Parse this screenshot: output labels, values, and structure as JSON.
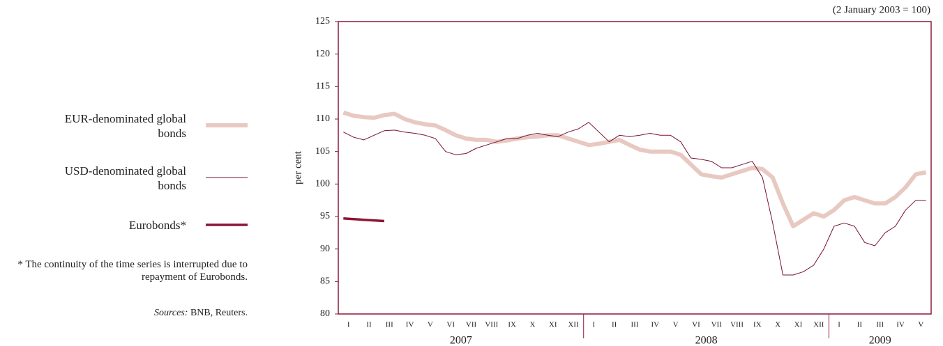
{
  "chart_data": {
    "type": "line",
    "note": "(2 January 2003 = 100)",
    "ylabel": "per cent",
    "categories": [
      "I",
      null,
      "II",
      null,
      "III",
      null,
      "IV",
      null,
      "V",
      null,
      "VI",
      null,
      "VII",
      null,
      "VIII",
      null,
      "IX",
      null,
      "X",
      null,
      "XI",
      null,
      "XII",
      null,
      "I",
      null,
      "II",
      null,
      "III",
      null,
      "IV",
      null,
      "V",
      null,
      "VI",
      null,
      "VII",
      null,
      "VIII",
      null,
      "IX",
      null,
      "X",
      null,
      "XI",
      null,
      "XII",
      null,
      "I",
      null,
      "II",
      null,
      "III",
      null,
      "IV",
      null,
      "V",
      null
    ],
    "years": [
      "2007",
      "2008",
      "2009"
    ],
    "ylim": [
      80,
      125
    ],
    "yticks": [
      80,
      85,
      90,
      95,
      100,
      105,
      110,
      115,
      120,
      125
    ],
    "series": [
      {
        "name": "EUR-denominated global bonds",
        "color": "#e8c9c1",
        "width": 6,
        "values": [
          111,
          110.5,
          110.3,
          110.2,
          110.6,
          110.8,
          110,
          109.5,
          109.2,
          109,
          108.3,
          107.5,
          107,
          106.8,
          106.8,
          106.5,
          106.7,
          107,
          107.2,
          107.3,
          107.5,
          107.5,
          107,
          106.5,
          106,
          106.2,
          106.5,
          106.8,
          106,
          105.3,
          105,
          105,
          105,
          104.5,
          103,
          101.5,
          101.2,
          101,
          101.5,
          102,
          102.5,
          102.3,
          101,
          97,
          93.5,
          94.5,
          95.5,
          95,
          96,
          97.5,
          98,
          97.5,
          97,
          97,
          98,
          99.5,
          101.5,
          101.8
        ]
      },
      {
        "name": "USD-denominated global bonds",
        "color": "#7a1030",
        "width": 1,
        "values": [
          108,
          107.2,
          106.8,
          107.5,
          108.2,
          108.3,
          108,
          107.8,
          107.5,
          107,
          105,
          104.5,
          104.7,
          105.5,
          106,
          106.5,
          107,
          107,
          107.5,
          107.8,
          107.5,
          107.3,
          108,
          108.5,
          109.5,
          108,
          106.5,
          107.5,
          107.3,
          107.5,
          107.8,
          107.5,
          107.5,
          106.5,
          104,
          103.8,
          103.5,
          102.5,
          102.5,
          103,
          103.5,
          101,
          94,
          86,
          86,
          86.5,
          87.5,
          90,
          93.5,
          94,
          93.5,
          91,
          90.5,
          92.5,
          93.5,
          96,
          97.5,
          97.5
        ]
      },
      {
        "name": "Eurobonds*",
        "color": "#8b1538",
        "width": 3.5,
        "values": [
          94.7,
          94.6,
          94.5,
          94.4,
          94.3,
          null,
          null,
          null,
          null,
          null,
          null,
          null,
          null,
          null,
          null,
          null,
          null,
          null,
          null,
          null,
          null,
          null,
          null,
          null,
          null,
          null,
          null,
          null,
          null,
          null,
          null,
          null,
          null,
          null,
          null,
          null,
          null,
          null,
          null,
          null,
          null,
          null,
          null,
          null,
          null,
          null,
          null,
          null,
          null,
          null,
          null,
          null,
          null,
          null,
          null,
          null,
          null,
          null
        ]
      }
    ],
    "footnote": "* The continuity of the time series is interrupted due to repayment of Eurobonds.",
    "sources_label": "Sources:",
    "sources": "BNB, Reuters."
  }
}
